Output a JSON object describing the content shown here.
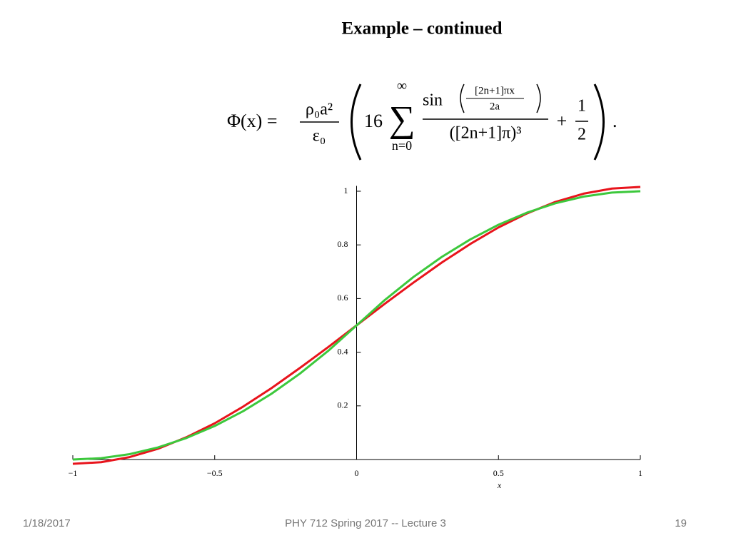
{
  "slide": {
    "title": "Example – continued",
    "equation": {
      "lhs": "Φ(x) =",
      "coef_num": "ρ₀a²",
      "coef_den": "ε₀",
      "factor": "16",
      "sum_sign": "∑",
      "sum_top": "∞",
      "sum_bottom": "n=0",
      "sin": "sin",
      "arg_num": "[2n+1]πx",
      "arg_den": "2a",
      "term_den": "([2n+1]π)³",
      "plus": "+",
      "half_num": "1",
      "half_den": "2",
      "end": "."
    },
    "footer_left": "1/18/2017",
    "footer_center": "PHY 712  Spring 2017 -- Lecture 3",
    "footer_right": "19"
  },
  "chart_data": {
    "type": "line",
    "x_label": "x",
    "x": [
      -1,
      -0.9,
      -0.8,
      -0.7,
      -0.6,
      -0.5,
      -0.4,
      -0.3,
      -0.2,
      -0.1,
      0,
      0.1,
      0.2,
      0.3,
      0.4,
      0.5,
      0.6,
      0.7,
      0.8,
      0.9,
      1
    ],
    "series": [
      {
        "color": "#e8141c",
        "values": [
          -0.016,
          -0.01,
          0.009,
          0.04,
          0.083,
          0.135,
          0.197,
          0.266,
          0.341,
          0.419,
          0.5,
          0.581,
          0.659,
          0.734,
          0.803,
          0.865,
          0.917,
          0.96,
          0.991,
          1.01,
          1.016
        ]
      },
      {
        "color": "#3cc83c",
        "values": [
          0,
          0.005,
          0.02,
          0.045,
          0.08,
          0.125,
          0.18,
          0.245,
          0.32,
          0.405,
          0.5,
          0.595,
          0.68,
          0.755,
          0.82,
          0.875,
          0.92,
          0.955,
          0.98,
          0.995,
          1
        ]
      }
    ],
    "xlim": [
      -1,
      1
    ],
    "ylim": [
      0,
      1.02
    ],
    "xticks": [
      {
        "value": -1,
        "label": "−1"
      },
      {
        "value": -0.5,
        "label": "−0.5"
      },
      0,
      0.5,
      1
    ],
    "yticks": [
      0.2,
      0.4,
      0.6,
      0.8,
      1
    ]
  }
}
